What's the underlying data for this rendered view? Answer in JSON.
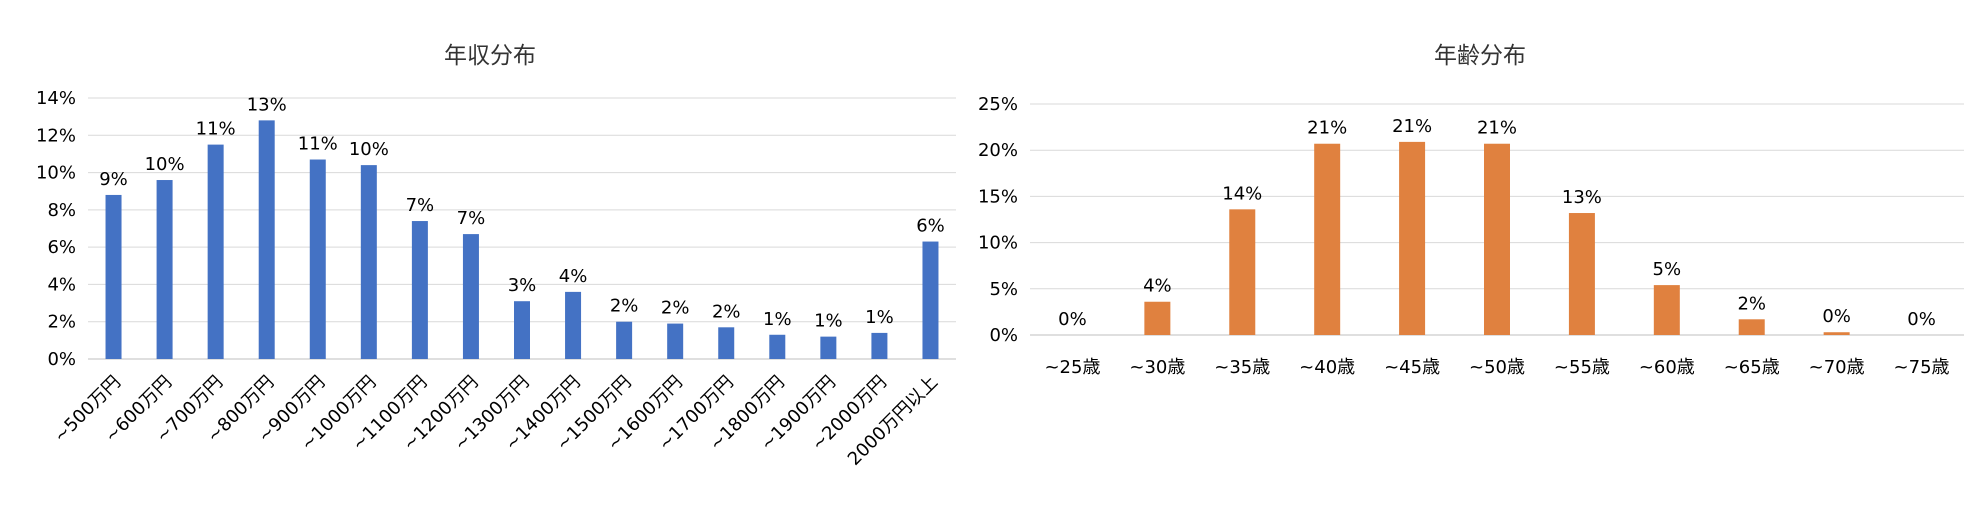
{
  "chart_data": [
    {
      "type": "bar",
      "title": "年収分布",
      "categories": [
        "~500万円",
        "~600万円",
        "~700万円",
        "~800万円",
        "~900万円",
        "~1000万円",
        "~1100万円",
        "~1200万円",
        "~1300万円",
        "~1400万円",
        "~1500万円",
        "~1600万円",
        "~1700万円",
        "~1800万円",
        "~1900万円",
        "~2000万円",
        "2000万円以上"
      ],
      "values": [
        8.8,
        9.6,
        11.5,
        12.8,
        10.7,
        10.4,
        7.4,
        6.7,
        3.1,
        3.6,
        2.0,
        1.9,
        1.7,
        1.3,
        1.2,
        1.4,
        6.3
      ],
      "data_labels": [
        "9%",
        "10%",
        "11%",
        "13%",
        "11%",
        "10%",
        "7%",
        "7%",
        "3%",
        "4%",
        "2%",
        "2%",
        "2%",
        "1%",
        "1%",
        "1%",
        "6%"
      ],
      "ylim": [
        0,
        14
      ],
      "y_ticks": [
        "0%",
        "2%",
        "4%",
        "6%",
        "8%",
        "10%",
        "12%",
        "14%"
      ],
      "xlabel": "",
      "ylabel": "",
      "grid": true,
      "color": "#4472C4",
      "x_tick_rotation": "-45"
    },
    {
      "type": "bar",
      "title": "年齢分布",
      "categories": [
        "~25歳",
        "~30歳",
        "~35歳",
        "~40歳",
        "~45歳",
        "~50歳",
        "~55歳",
        "~60歳",
        "~65歳",
        "~70歳",
        "~75歳"
      ],
      "values": [
        0,
        3.6,
        13.6,
        20.7,
        20.9,
        20.7,
        13.2,
        5.4,
        1.7,
        0.3,
        0
      ],
      "data_labels": [
        "0%",
        "4%",
        "14%",
        "21%",
        "21%",
        "21%",
        "13%",
        "5%",
        "2%",
        "0%",
        "0%"
      ],
      "ylim": [
        0,
        25
      ],
      "y_ticks": [
        "0%",
        "5%",
        "10%",
        "15%",
        "20%",
        "25%"
      ],
      "xlabel": "",
      "ylabel": "",
      "grid": true,
      "color": "#E0813F"
    }
  ]
}
